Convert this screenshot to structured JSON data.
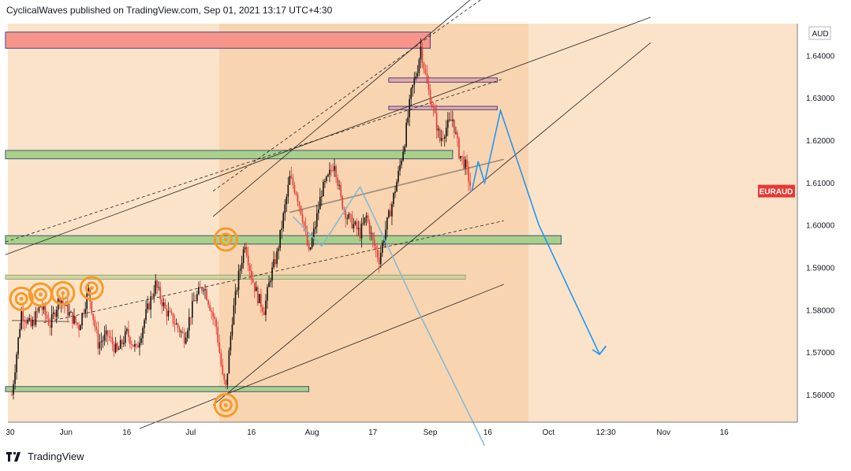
{
  "header": {
    "publish_line": "CyclicalWaves published on TradingView.com, Sep 01, 2021 13:17 UTC+4:30"
  },
  "footer": {
    "brand": "TradingView",
    "logo_icon": "tradingview-logo-icon"
  },
  "chart_data": {
    "type": "candlestick",
    "symbol": "EURAUD",
    "currency": "AUD",
    "y_axis": {
      "ticks": [
        "1.64000",
        "1.63000",
        "1.62000",
        "1.61000",
        "1.60000",
        "1.59000",
        "1.58000",
        "1.57000",
        "1.56000"
      ],
      "ylim": [
        1.5535,
        1.6475
      ]
    },
    "x_axis": {
      "ticks": [
        "30",
        "Jun",
        "16",
        "Jul",
        "16",
        "Aug",
        "17",
        "Sep",
        "16",
        "Oct",
        "12:30",
        "Nov",
        "16"
      ]
    },
    "colors": {
      "background": "#fbe3c9",
      "up": "#26a69a",
      "down": "#ef5350",
      "candle_ink": "#111111",
      "candle_bear": "#e53935",
      "projection": "#2196f3",
      "symbol_badge": "#e53935",
      "cycle_circle": "#f59b2c",
      "channel_fill": "#f7c99a",
      "resistance_zone": "#f8958a",
      "support_zone": "#a9cf8a",
      "minor_zone": "#e8aaa5"
    },
    "price_path": [
      [
        0,
        1.56
      ],
      [
        3,
        1.5795
      ],
      [
        6,
        1.576
      ],
      [
        9,
        1.581
      ],
      [
        12,
        1.5765
      ],
      [
        15,
        1.583
      ],
      [
        18,
        1.579
      ],
      [
        21,
        1.576
      ],
      [
        24,
        1.5845
      ],
      [
        27,
        1.572
      ],
      [
        30,
        1.574
      ],
      [
        33,
        1.57
      ],
      [
        36,
        1.5745
      ],
      [
        39,
        1.5705
      ],
      [
        42,
        1.579
      ],
      [
        45,
        1.586
      ],
      [
        48,
        1.58
      ],
      [
        51,
        1.577
      ],
      [
        54,
        1.5735
      ],
      [
        57,
        1.582
      ],
      [
        60,
        1.586
      ],
      [
        62,
        1.581
      ],
      [
        64,
        1.576
      ],
      [
        66,
        1.564
      ],
      [
        67,
        1.5615
      ],
      [
        69,
        1.578
      ],
      [
        71,
        1.588
      ],
      [
        73,
        1.596
      ],
      [
        75,
        1.588
      ],
      [
        77,
        1.583
      ],
      [
        79,
        1.58
      ],
      [
        81,
        1.588
      ],
      [
        83,
        1.593
      ],
      [
        85,
        1.602
      ],
      [
        87,
        1.611
      ],
      [
        89,
        1.608
      ],
      [
        91,
        1.602
      ],
      [
        93,
        1.593
      ],
      [
        95,
        1.6
      ],
      [
        97,
        1.608
      ],
      [
        99,
        1.611
      ],
      [
        101,
        1.615
      ],
      [
        103,
        1.606
      ],
      [
        105,
        1.602
      ],
      [
        107,
        1.6
      ],
      [
        109,
        1.598
      ],
      [
        111,
        1.602
      ],
      [
        113,
        1.596
      ],
      [
        115,
        1.592
      ],
      [
        117,
        1.599
      ],
      [
        119,
        1.605
      ],
      [
        121,
        1.612
      ],
      [
        123,
        1.62
      ],
      [
        125,
        1.631
      ],
      [
        127,
        1.637
      ],
      [
        128,
        1.642
      ],
      [
        130,
        1.633
      ],
      [
        132,
        1.627
      ],
      [
        134,
        1.62
      ],
      [
        136,
        1.623
      ],
      [
        138,
        1.625
      ],
      [
        140,
        1.617
      ],
      [
        142,
        1.614
      ],
      [
        144,
        1.608
      ]
    ],
    "projection_path": [
      [
        144,
        1.608
      ],
      [
        146,
        1.615
      ],
      [
        148,
        1.61
      ],
      [
        153,
        1.627
      ],
      [
        165,
        1.6
      ],
      [
        184,
        1.5695
      ],
      [
        186,
        1.5715
      ]
    ],
    "secondary_path": [
      [
        88,
        1.602
      ],
      [
        97,
        1.595
      ],
      [
        109,
        1.609
      ],
      [
        127,
        1.58
      ],
      [
        148,
        1.548
      ]
    ],
    "zones": [
      {
        "kind": "resistance",
        "x": [
          -2,
          131
        ],
        "y": [
          1.6417,
          1.6455
        ]
      },
      {
        "kind": "minor",
        "x": [
          118,
          152
        ],
        "y": [
          1.6337,
          1.6347
        ]
      },
      {
        "kind": "minor",
        "x": [
          118,
          152
        ],
        "y": [
          1.6272,
          1.628
        ]
      },
      {
        "kind": "support",
        "x": [
          -2,
          138
        ],
        "y": [
          1.6156,
          1.6176
        ]
      },
      {
        "kind": "support",
        "x": [
          -2,
          172
        ],
        "y": [
          1.5955,
          1.5975
        ]
      },
      {
        "kind": "support_light",
        "x": [
          -2,
          142
        ],
        "y": [
          1.5872,
          1.5882
        ]
      },
      {
        "kind": "support",
        "x": [
          -2,
          93
        ],
        "y": [
          1.5607,
          1.5619
        ]
      }
    ],
    "cycle_markers": [
      [
        3,
        1.5826
      ],
      [
        9,
        1.5836
      ],
      [
        16,
        1.5839
      ],
      [
        25,
        1.5851
      ],
      [
        67,
        1.5966
      ],
      [
        67,
        1.5575
      ]
    ],
    "trendlines": [
      {
        "style": "solid",
        "from": [
          -2,
          1.593
        ],
        "to": [
          200,
          1.649
        ]
      },
      {
        "style": "solid",
        "from": [
          63,
          1.602
        ],
        "to": [
          200,
          1.689
        ]
      },
      {
        "style": "solid",
        "from": [
          63,
          1.5575
        ],
        "to": [
          200,
          1.643
        ]
      },
      {
        "style": "solid",
        "from": [
          40,
          1.552
        ],
        "to": [
          154,
          1.586
        ]
      },
      {
        "style": "dashed",
        "from": [
          -2,
          1.596
        ],
        "to": [
          154,
          1.6345
        ]
      },
      {
        "style": "dashed",
        "from": [
          63,
          1.608
        ],
        "to": [
          154,
          1.657
        ]
      },
      {
        "style": "dashed",
        "from": [
          10,
          1.577
        ],
        "to": [
          154,
          1.601
        ]
      },
      {
        "style": "solid_brown",
        "from": [
          87,
          1.603
        ],
        "to": [
          154,
          1.6155
        ]
      },
      {
        "style": "solid_brown",
        "from": [
          0,
          1.5775
        ],
        "to": [
          18,
          1.5772
        ]
      }
    ]
  }
}
